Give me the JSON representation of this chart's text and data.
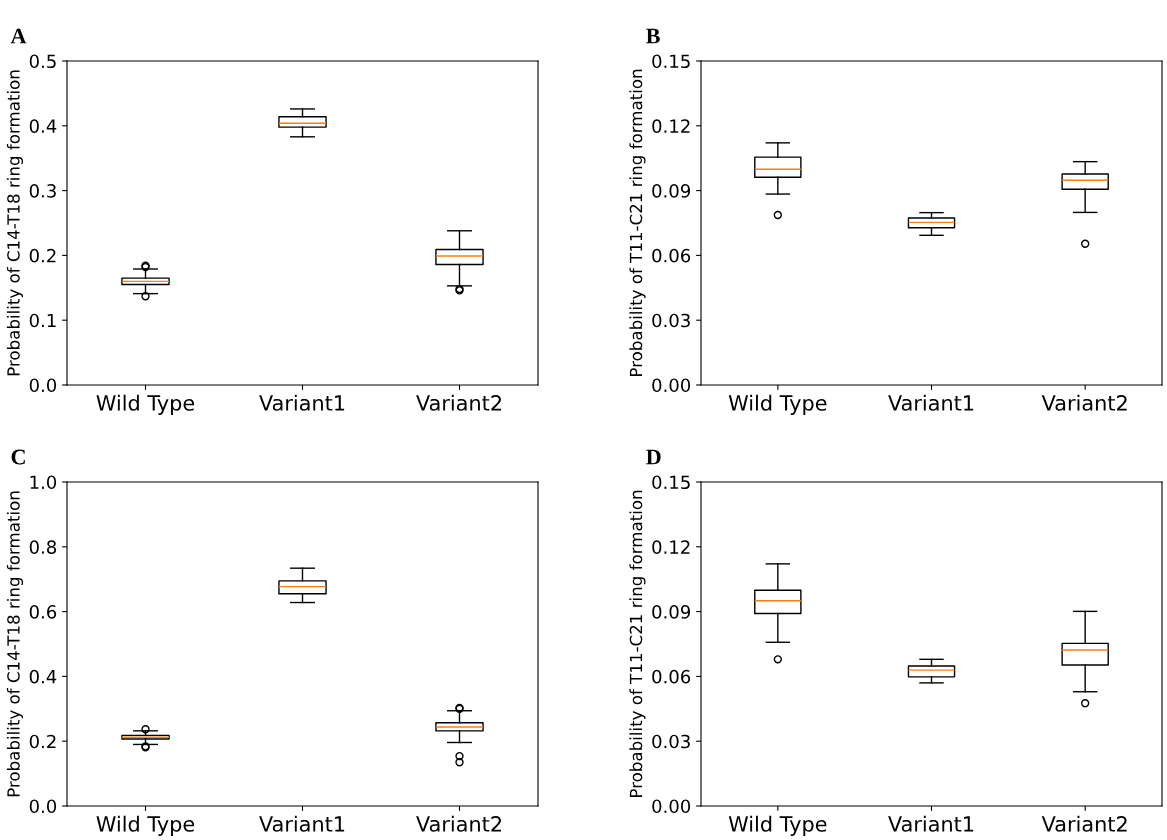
{
  "chart_data": [
    {
      "type": "box",
      "title": "A",
      "ylabel": "Probability of C14-T18 ring formation",
      "categories": [
        "Wild Type",
        "Variant1",
        "Variant2"
      ],
      "ylim": [
        0,
        0.5
      ],
      "yticks": [
        {
          "value": 0,
          "label": "0.0"
        },
        {
          "value": 0.1,
          "label": "0.1"
        },
        {
          "value": 0.2,
          "label": "0.2"
        },
        {
          "value": 0.3,
          "label": "0.3"
        },
        {
          "value": 0.4,
          "label": "0.4"
        },
        {
          "value": 0.5,
          "label": "0.5"
        }
      ],
      "boxes": [
        {
          "low": 0.141,
          "q1": 0.155,
          "median": 0.16,
          "q3": 0.165,
          "high": 0.179,
          "outliers": [
            0.184,
            0.182,
            0.137
          ]
        },
        {
          "low": 0.383,
          "q1": 0.398,
          "median": 0.404,
          "q3": 0.414,
          "high": 0.426
        },
        {
          "low": 0.153,
          "q1": 0.186,
          "median": 0.199,
          "q3": 0.209,
          "high": 0.238,
          "outliers": [
            0.148,
            0.146
          ]
        }
      ]
    },
    {
      "type": "box",
      "title": "B",
      "ylabel": "Probability of T11-C21 ring formation",
      "categories": [
        "Wild Type",
        "Variant1",
        "Variant2"
      ],
      "ylim": [
        0,
        0.15
      ],
      "yticks": [
        {
          "value": 0,
          "label": "0.00"
        },
        {
          "value": 0.03,
          "label": "0.03"
        },
        {
          "value": 0.06,
          "label": "0.06"
        },
        {
          "value": 0.09,
          "label": "0.09"
        },
        {
          "value": 0.12,
          "label": "0.12"
        },
        {
          "value": 0.15,
          "label": "0.15"
        }
      ],
      "boxes": [
        {
          "low": 0.0884,
          "q1": 0.0962,
          "median": 0.0999,
          "q3": 0.1055,
          "high": 0.1121,
          "outliers": [
            0.0787
          ]
        },
        {
          "low": 0.0693,
          "q1": 0.0728,
          "median": 0.0753,
          "q3": 0.0773,
          "high": 0.0798
        },
        {
          "low": 0.0799,
          "q1": 0.0906,
          "median": 0.0948,
          "q3": 0.0977,
          "high": 0.1034,
          "outliers": [
            0.0654
          ]
        }
      ]
    },
    {
      "type": "box",
      "title": "C",
      "ylabel": "Probability of C14-T18 ring formation",
      "categories": [
        "Wild Type",
        "Variant1",
        "Variant2"
      ],
      "ylim": [
        0,
        1.0
      ],
      "yticks": [
        {
          "value": 0,
          "label": "0.0"
        },
        {
          "value": 0.2,
          "label": "0.2"
        },
        {
          "value": 0.4,
          "label": "0.4"
        },
        {
          "value": 0.6,
          "label": "0.6"
        },
        {
          "value": 0.8,
          "label": "0.8"
        },
        {
          "value": 1.0,
          "label": "1.0"
        }
      ],
      "boxes": [
        {
          "low": 0.19,
          "q1": 0.207,
          "median": 0.212,
          "q3": 0.218,
          "high": 0.232,
          "outliers": [
            0.237,
            0.184,
            0.181
          ]
        },
        {
          "low": 0.628,
          "q1": 0.655,
          "median": 0.677,
          "q3": 0.695,
          "high": 0.734
        },
        {
          "low": 0.196,
          "q1": 0.232,
          "median": 0.244,
          "q3": 0.257,
          "high": 0.294,
          "outliers": [
            0.303,
            0.3,
            0.154,
            0.135
          ]
        }
      ]
    },
    {
      "type": "box",
      "title": "D",
      "ylabel": "Probability of T11-C21 ring formation",
      "categories": [
        "Wild Type",
        "Variant1",
        "Variant2"
      ],
      "ylim": [
        0,
        0.15
      ],
      "yticks": [
        {
          "value": 0,
          "label": "0.00"
        },
        {
          "value": 0.03,
          "label": "0.03"
        },
        {
          "value": 0.06,
          "label": "0.06"
        },
        {
          "value": 0.09,
          "label": "0.09"
        },
        {
          "value": 0.12,
          "label": "0.12"
        },
        {
          "value": 0.15,
          "label": "0.15"
        }
      ],
      "boxes": [
        {
          "low": 0.0758,
          "q1": 0.0891,
          "median": 0.095,
          "q3": 0.0999,
          "high": 0.1121,
          "outliers": [
            0.0679
          ]
        },
        {
          "low": 0.057,
          "q1": 0.0598,
          "median": 0.0629,
          "q3": 0.0648,
          "high": 0.0679
        },
        {
          "low": 0.0529,
          "q1": 0.0653,
          "median": 0.0722,
          "q3": 0.0753,
          "high": 0.0901,
          "outliers": [
            0.0476
          ]
        }
      ]
    }
  ]
}
